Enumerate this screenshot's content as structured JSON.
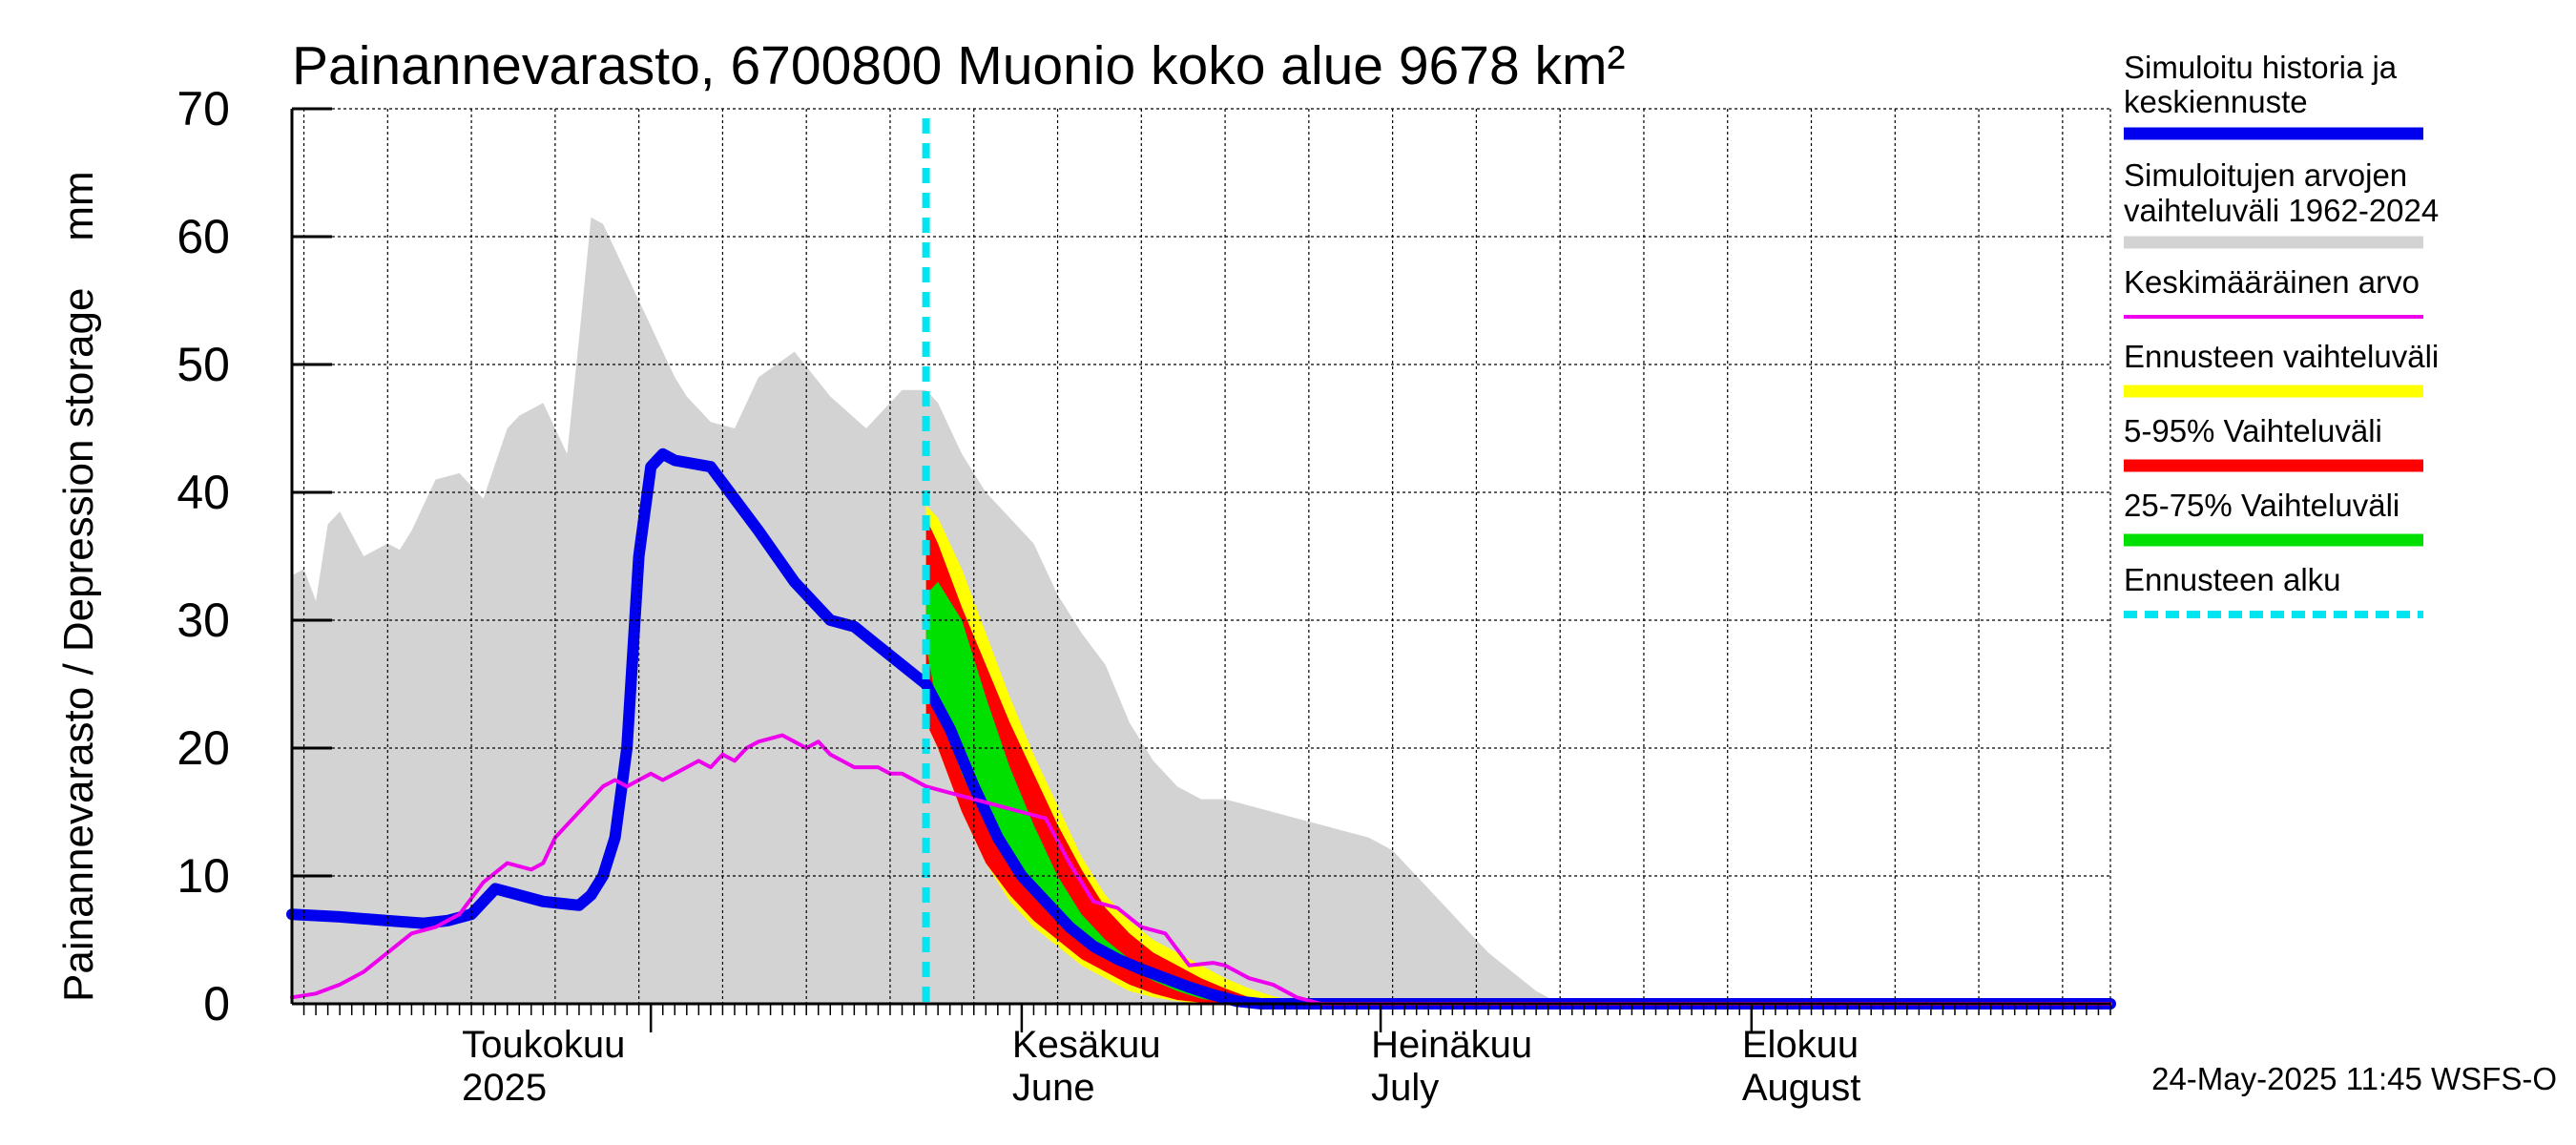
{
  "chart_data": {
    "type": "area",
    "title": "Painannevarasto, 6700800 Muonio koko alue 9678 km²",
    "ylabel": "Painannevarasto / Depression storage    mm",
    "xlabel": "",
    "ylim": [
      0,
      70
    ],
    "yticks": [
      0,
      10,
      20,
      30,
      40,
      50,
      60,
      70
    ],
    "xlim": [
      "2025-04-01",
      "2025-08-31"
    ],
    "grid": true,
    "legend_position": "right",
    "month_labels": [
      {
        "date": "2025-04-16",
        "line1": "Toukokuu",
        "line2": "2025"
      },
      {
        "date": "2025-06-01",
        "line1": "Kesäkuu",
        "line2": "June"
      },
      {
        "date": "2025-07-01",
        "line1": "Heinäkuu",
        "line2": "July"
      },
      {
        "date": "2025-08-01",
        "line1": "Elokuu",
        "line2": "August"
      }
    ],
    "forecast_start": "2025-05-24",
    "series": [
      {
        "name": "Simuloitujen arvojen vaihteluväli 1962-2024",
        "kind": "band",
        "color": "#d3d3d3",
        "x": [
          "2025-04-01",
          "2025-04-02",
          "2025-04-03",
          "2025-04-04",
          "2025-04-05",
          "2025-04-07",
          "2025-04-09",
          "2025-04-10",
          "2025-04-11",
          "2025-04-13",
          "2025-04-15",
          "2025-04-17",
          "2025-04-19",
          "2025-04-20",
          "2025-04-22",
          "2025-04-24",
          "2025-04-25",
          "2025-04-26",
          "2025-04-27",
          "2025-04-28",
          "2025-04-29",
          "2025-04-30",
          "2025-05-01",
          "2025-05-02",
          "2025-05-03",
          "2025-05-04",
          "2025-05-06",
          "2025-05-08",
          "2025-05-10",
          "2025-05-13",
          "2025-05-16",
          "2025-05-19",
          "2025-05-22",
          "2025-05-24",
          "2025-05-25",
          "2025-05-27",
          "2025-05-29",
          "2025-05-31",
          "2025-06-02",
          "2025-06-04",
          "2025-06-06",
          "2025-06-08",
          "2025-06-10",
          "2025-06-12",
          "2025-06-14",
          "2025-06-16",
          "2025-06-18",
          "2025-06-20",
          "2025-06-22",
          "2025-06-24",
          "2025-06-26",
          "2025-06-28",
          "2025-06-30",
          "2025-07-02",
          "2025-07-04",
          "2025-07-06",
          "2025-07-08",
          "2025-07-10",
          "2025-07-12",
          "2025-07-14",
          "2025-07-16",
          "2025-07-18",
          "2025-08-31"
        ],
        "upper": [
          33.5,
          34,
          31.5,
          37.5,
          38.5,
          35,
          36,
          35.5,
          37,
          41,
          41.5,
          39.5,
          45,
          46,
          47,
          43,
          52,
          61.5,
          61,
          59,
          57,
          55,
          53,
          51,
          49,
          47.5,
          45.5,
          45,
          49,
          51,
          47.5,
          45,
          48,
          48,
          47,
          43,
          40,
          38,
          36,
          32,
          29,
          26.5,
          22,
          19,
          17,
          16,
          16,
          15.5,
          15,
          14.5,
          14,
          13.5,
          13,
          12,
          10,
          8,
          6,
          4,
          2.5,
          1,
          0,
          0,
          0
        ],
        "lower": [
          0,
          0,
          0,
          0,
          0,
          0,
          0,
          0,
          0,
          0,
          0,
          0,
          0,
          0,
          0,
          0,
          0,
          0,
          0,
          0,
          0,
          0,
          0,
          0,
          0,
          0,
          0,
          0,
          0,
          0,
          0,
          0,
          0,
          0,
          0,
          0,
          0,
          0,
          0,
          0,
          0,
          0,
          0,
          0,
          0,
          0,
          0,
          0,
          0,
          0,
          0,
          0,
          0,
          0,
          0,
          0,
          0,
          0,
          0,
          0,
          0,
          0,
          0
        ]
      },
      {
        "name": "Ennusteen vaihteluväli",
        "kind": "band",
        "color": "#ffff00",
        "x": [
          "2025-05-24",
          "2025-05-25",
          "2025-05-27",
          "2025-05-29",
          "2025-05-31",
          "2025-06-02",
          "2025-06-04",
          "2025-06-06",
          "2025-06-08",
          "2025-06-10",
          "2025-06-12",
          "2025-06-14",
          "2025-06-16",
          "2025-06-18",
          "2025-06-20",
          "2025-06-22",
          "2025-06-24",
          "2025-06-26",
          "2025-06-28",
          "2025-06-30",
          "2025-07-02",
          "2025-08-31"
        ],
        "upper": [
          39,
          38,
          34,
          29,
          24,
          19.5,
          15.5,
          11.5,
          8.5,
          6.5,
          5,
          4,
          3,
          2,
          1.2,
          0.6,
          0.2,
          0,
          0,
          0,
          0,
          0
        ],
        "lower": [
          22,
          20,
          15,
          11,
          8,
          6,
          4.5,
          3,
          2,
          1,
          0.5,
          0.2,
          0,
          0,
          0,
          0,
          0,
          0,
          0,
          0,
          0,
          0
        ]
      },
      {
        "name": "5-95% Vaihteluväli",
        "kind": "band",
        "color": "#ff0000",
        "x": [
          "2025-05-24",
          "2025-05-25",
          "2025-05-27",
          "2025-05-29",
          "2025-05-31",
          "2025-06-02",
          "2025-06-04",
          "2025-06-06",
          "2025-06-08",
          "2025-06-10",
          "2025-06-12",
          "2025-06-14",
          "2025-06-16",
          "2025-06-18",
          "2025-06-20",
          "2025-06-22",
          "2025-06-24",
          "2025-08-31"
        ],
        "upper": [
          38,
          36,
          31,
          26.5,
          22,
          18,
          14,
          10.5,
          7.5,
          5.5,
          4,
          3,
          2,
          1.2,
          0.5,
          0.1,
          0,
          0
        ],
        "lower": [
          22,
          20,
          15,
          11,
          8.5,
          6.5,
          5,
          3.5,
          2.5,
          1.5,
          0.8,
          0.3,
          0.1,
          0,
          0,
          0,
          0,
          0
        ]
      },
      {
        "name": "25-75% Vaihteluväli",
        "kind": "band",
        "color": "#00e000",
        "x": [
          "2025-05-24",
          "2025-05-25",
          "2025-05-27",
          "2025-05-29",
          "2025-05-31",
          "2025-06-02",
          "2025-06-04",
          "2025-06-06",
          "2025-06-08",
          "2025-06-10",
          "2025-06-12",
          "2025-06-14",
          "2025-06-16",
          "2025-06-18",
          "2025-06-20",
          "2025-06-22",
          "2025-08-31"
        ],
        "upper": [
          32,
          33,
          30,
          24,
          18.5,
          14,
          10,
          7,
          5,
          3.5,
          2.5,
          1.5,
          0.8,
          0.3,
          0,
          0,
          0
        ],
        "lower": [
          28,
          23,
          18,
          14,
          11,
          8.5,
          6.5,
          5,
          3.8,
          2.8,
          1.8,
          1,
          0.4,
          0.1,
          0,
          0,
          0
        ]
      },
      {
        "name": "Simuloitu historia ja keskiennuste",
        "kind": "line",
        "color": "#0000ee",
        "width": 12,
        "x": [
          "2025-04-01",
          "2025-04-05",
          "2025-04-09",
          "2025-04-12",
          "2025-04-14",
          "2025-04-16",
          "2025-04-18",
          "2025-04-20",
          "2025-04-22",
          "2025-04-24",
          "2025-04-25",
          "2025-04-26",
          "2025-04-27",
          "2025-04-28",
          "2025-04-29",
          "2025-04-30",
          "2025-05-01",
          "2025-05-02",
          "2025-05-03",
          "2025-05-06",
          "2025-05-10",
          "2025-05-13",
          "2025-05-16",
          "2025-05-18",
          "2025-05-20",
          "2025-05-22",
          "2025-05-24",
          "2025-05-26",
          "2025-05-28",
          "2025-05-30",
          "2025-06-01",
          "2025-06-03",
          "2025-06-05",
          "2025-06-07",
          "2025-06-09",
          "2025-06-11",
          "2025-06-13",
          "2025-06-15",
          "2025-06-17",
          "2025-06-19",
          "2025-06-21",
          "2025-08-31"
        ],
        "values": [
          7,
          6.8,
          6.5,
          6.3,
          6.5,
          7,
          9,
          8.5,
          8,
          7.8,
          7.7,
          8.5,
          10,
          13,
          20,
          35,
          42,
          43,
          42.5,
          42,
          37,
          33,
          30,
          29.5,
          28,
          26.5,
          25,
          21.5,
          17,
          13,
          10,
          8,
          6,
          4.5,
          3.5,
          2.7,
          2,
          1.3,
          0.7,
          0.2,
          0,
          0
        ]
      },
      {
        "name": "Keskimääräinen arvo",
        "kind": "line",
        "color": "#ee00ee",
        "width": 4,
        "x": [
          "2025-04-01",
          "2025-04-03",
          "2025-04-05",
          "2025-04-07",
          "2025-04-09",
          "2025-04-11",
          "2025-04-13",
          "2025-04-15",
          "2025-04-17",
          "2025-04-19",
          "2025-04-21",
          "2025-04-22",
          "2025-04-23",
          "2025-04-24",
          "2025-04-25",
          "2025-04-27",
          "2025-04-28",
          "2025-04-29",
          "2025-04-30",
          "2025-05-01",
          "2025-05-02",
          "2025-05-03",
          "2025-05-05",
          "2025-05-06",
          "2025-05-07",
          "2025-05-08",
          "2025-05-09",
          "2025-05-10",
          "2025-05-12",
          "2025-05-13",
          "2025-05-14",
          "2025-05-15",
          "2025-05-16",
          "2025-05-17",
          "2025-05-18",
          "2025-05-20",
          "2025-05-21",
          "2025-05-22",
          "2025-05-24",
          "2025-05-26",
          "2025-05-28",
          "2025-05-30",
          "2025-06-01",
          "2025-06-03",
          "2025-06-05",
          "2025-06-07",
          "2025-06-09",
          "2025-06-11",
          "2025-06-13",
          "2025-06-15",
          "2025-06-17",
          "2025-06-18",
          "2025-06-20",
          "2025-06-22",
          "2025-06-24",
          "2025-06-26",
          "2025-08-31"
        ],
        "values": [
          0.5,
          0.8,
          1.5,
          2.5,
          4,
          5.5,
          6,
          7,
          9.5,
          11,
          10.5,
          11,
          13,
          14,
          15,
          17,
          17.5,
          17,
          17.5,
          18,
          17.5,
          18,
          19,
          18.5,
          19.5,
          19,
          20,
          20.5,
          21,
          20.5,
          20,
          20.5,
          19.5,
          19,
          18.5,
          18.5,
          18,
          18,
          17,
          16.5,
          16,
          15.5,
          15,
          14.5,
          11,
          8,
          7.5,
          6,
          5.5,
          3,
          3.2,
          3,
          2,
          1.5,
          0.5,
          0,
          0
        ]
      }
    ]
  },
  "legend": [
    {
      "label_line1": "Simuloitu historia ja",
      "label_line2": "keskiennuste",
      "color": "#0000ee",
      "style": "thick"
    },
    {
      "label_line1": "Simuloitujen arvojen",
      "label_line2": "vaihteluväli 1962-2024",
      "color": "#d3d3d3",
      "style": "thick"
    },
    {
      "label_line1": "Keskimääräinen arvo",
      "label_line2": "",
      "color": "#ee00ee",
      "style": "thin"
    },
    {
      "label_line1": "Ennusteen vaihteluväli",
      "label_line2": "",
      "color": "#ffff00",
      "style": "thick"
    },
    {
      "label_line1": "5-95% Vaihteluväli",
      "label_line2": "",
      "color": "#ff0000",
      "style": "thick"
    },
    {
      "label_line1": "25-75% Vaihteluväli",
      "label_line2": "",
      "color": "#00e000",
      "style": "thick"
    },
    {
      "label_line1": "Ennusteen alku",
      "label_line2": "",
      "color": "#00e5f0",
      "style": "dashed"
    }
  ],
  "footer": "24-May-2025 11:45 WSFS-O"
}
